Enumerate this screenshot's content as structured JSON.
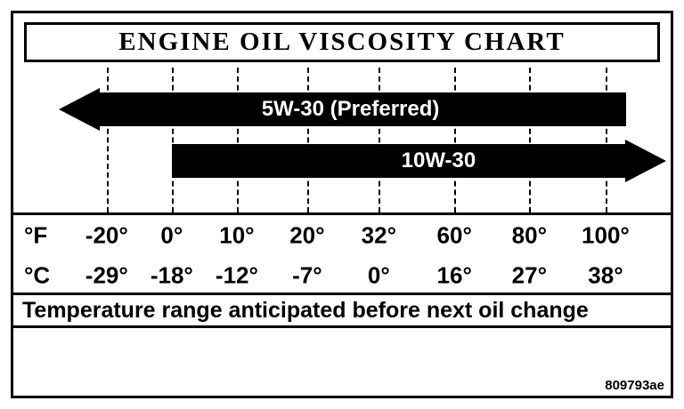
{
  "title": "ENGINE OIL VISCOSITY CHART",
  "bars": {
    "bar1_label": "5W-30 (Preferred)",
    "bar2_label": "10W-30"
  },
  "scale": {
    "f_unit": "°F",
    "c_unit": "°C",
    "f": [
      "-20°",
      "0°",
      "10°",
      "20°",
      "32°",
      "60°",
      "80°",
      "100°"
    ],
    "c": [
      "-29°",
      "-18°",
      "-12°",
      "-7°",
      "0°",
      "16°",
      "27°",
      "38°"
    ]
  },
  "caption": "Temperature range anticipated before next oil change",
  "figure_id": "809793ae",
  "colors": {
    "bar": "#000000",
    "background": "#ffffff",
    "text": "#000000",
    "bar_text": "#ffffff"
  },
  "chart_data": {
    "type": "bar",
    "title": "ENGINE OIL VISCOSITY CHART",
    "orientation": "horizontal-range",
    "xlabel": "Temperature",
    "x_ticks_fahrenheit": [
      -20,
      0,
      10,
      20,
      32,
      60,
      80,
      100
    ],
    "x_ticks_celsius": [
      -29,
      -18,
      -12,
      -7,
      0,
      16,
      27,
      38
    ],
    "xlim_fahrenheit": [
      -30,
      110
    ],
    "grid": "dashed vertical lines at each tick",
    "legend_position": "labels inside bars",
    "series": [
      {
        "name": "5W-30 (Preferred)",
        "start_f": -30,
        "end_f": 103,
        "open_ended": "left",
        "arrow_direction": "left",
        "meaning": "recommended below approximately 100°F and all colder temperatures shown"
      },
      {
        "name": "10W-30",
        "start_f": 0,
        "end_f": 110,
        "open_ended": "right",
        "arrow_direction": "right",
        "meaning": "recommended from 0°F (-18°C) upward"
      }
    ],
    "annotation": "Temperature range anticipated before next oil change"
  }
}
